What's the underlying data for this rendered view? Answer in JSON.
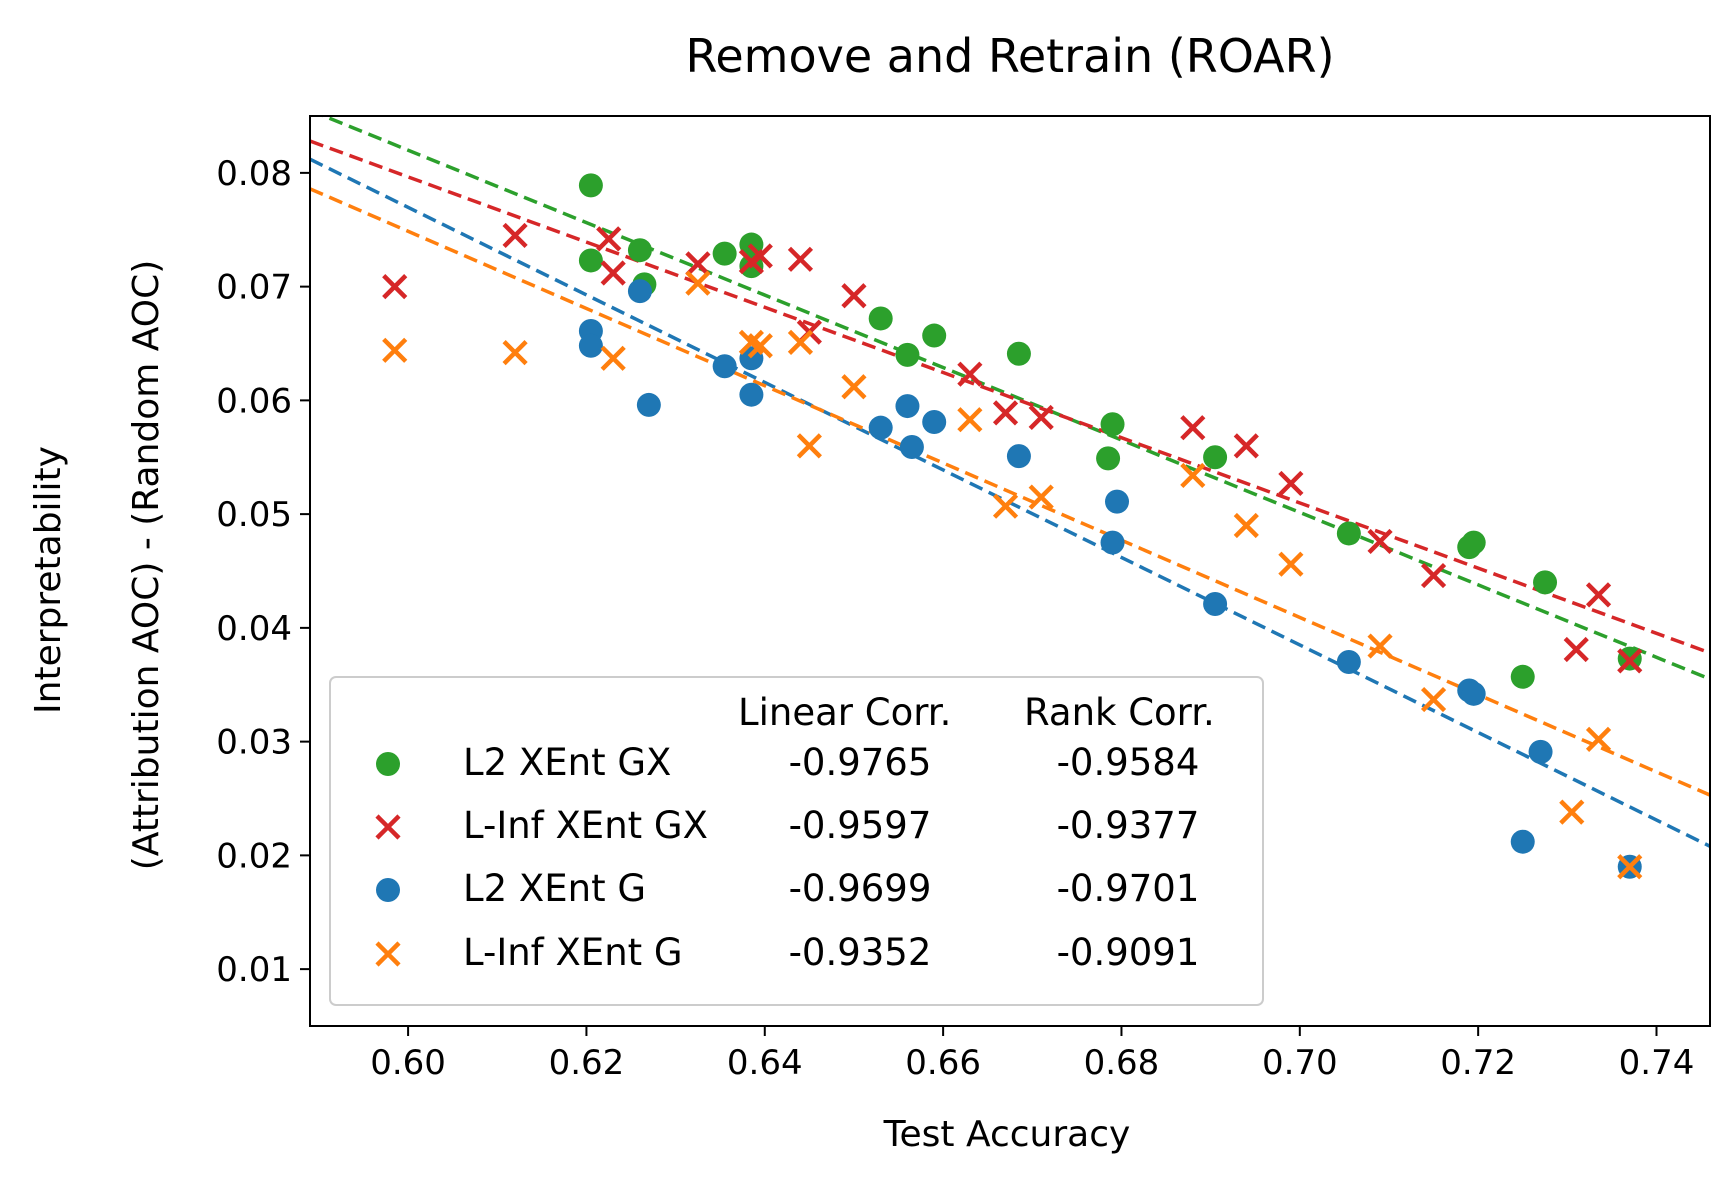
{
  "chart_data": {
    "type": "scatter",
    "title": "Remove and Retrain (ROAR)",
    "xlabel": "Test Accuracy",
    "ylabel_lines": [
      "Interpretability",
      "(Attribution AOC) - (Random AOC)"
    ],
    "xlim": [
      0.589,
      0.746
    ],
    "ylim": [
      0.005,
      0.085
    ],
    "xticks": [
      "0.60",
      "0.62",
      "0.64",
      "0.66",
      "0.68",
      "0.70",
      "0.72",
      "0.74"
    ],
    "yticks": [
      "0.01",
      "0.02",
      "0.03",
      "0.04",
      "0.05",
      "0.06",
      "0.07",
      "0.08"
    ],
    "grid": false,
    "legend_position": "lower-left",
    "legend_headers": [
      "Linear Corr.",
      "Rank Corr."
    ],
    "series": [
      {
        "name": "L2 XEnt GX",
        "marker": "circle",
        "color": "#2ca02c",
        "linear_corr": "-0.9765",
        "rank_corr": "-0.9584",
        "fit": {
          "x1": 0.589,
          "y1": 0.0855,
          "x2": 0.746,
          "y2": 0.0355
        },
        "points": [
          [
            0.6205,
            0.0789
          ],
          [
            0.6205,
            0.0723
          ],
          [
            0.626,
            0.0732
          ],
          [
            0.6265,
            0.0702
          ],
          [
            0.6355,
            0.0729
          ],
          [
            0.6385,
            0.0737
          ],
          [
            0.6385,
            0.0718
          ],
          [
            0.653,
            0.0672
          ],
          [
            0.656,
            0.064
          ],
          [
            0.659,
            0.0657
          ],
          [
            0.6685,
            0.0641
          ],
          [
            0.6785,
            0.0549
          ],
          [
            0.679,
            0.0579
          ],
          [
            0.6905,
            0.055
          ],
          [
            0.7055,
            0.0483
          ],
          [
            0.719,
            0.0471
          ],
          [
            0.7195,
            0.0475
          ],
          [
            0.7275,
            0.044
          ],
          [
            0.725,
            0.0357
          ],
          [
            0.737,
            0.0373
          ]
        ]
      },
      {
        "name": "L-Inf XEnt GX",
        "marker": "x",
        "color": "#d62728",
        "linear_corr": "-0.9597",
        "rank_corr": "-0.9377",
        "fit": {
          "x1": 0.589,
          "y1": 0.0828,
          "x2": 0.746,
          "y2": 0.0378
        },
        "points": [
          [
            0.5985,
            0.07
          ],
          [
            0.612,
            0.0745
          ],
          [
            0.6225,
            0.0742
          ],
          [
            0.623,
            0.0712
          ],
          [
            0.6325,
            0.072
          ],
          [
            0.6385,
            0.0722
          ],
          [
            0.6395,
            0.0727
          ],
          [
            0.644,
            0.0724
          ],
          [
            0.645,
            0.066
          ],
          [
            0.65,
            0.0692
          ],
          [
            0.663,
            0.0623
          ],
          [
            0.667,
            0.0589
          ],
          [
            0.671,
            0.0585
          ],
          [
            0.688,
            0.0576
          ],
          [
            0.694,
            0.056
          ],
          [
            0.699,
            0.0527
          ],
          [
            0.709,
            0.0476
          ],
          [
            0.715,
            0.0446
          ],
          [
            0.731,
            0.0381
          ],
          [
            0.7335,
            0.0429
          ],
          [
            0.737,
            0.0371
          ]
        ]
      },
      {
        "name": "L2 XEnt G",
        "marker": "circle",
        "color": "#1f77b4",
        "linear_corr": "-0.9699",
        "rank_corr": "-0.9701",
        "fit": {
          "x1": 0.589,
          "y1": 0.0812,
          "x2": 0.746,
          "y2": 0.0208
        },
        "points": [
          [
            0.6205,
            0.0661
          ],
          [
            0.6205,
            0.0648
          ],
          [
            0.626,
            0.0696
          ],
          [
            0.627,
            0.0596
          ],
          [
            0.6355,
            0.063
          ],
          [
            0.6385,
            0.0605
          ],
          [
            0.6385,
            0.0637
          ],
          [
            0.653,
            0.0576
          ],
          [
            0.656,
            0.0595
          ],
          [
            0.6565,
            0.0559
          ],
          [
            0.659,
            0.0581
          ],
          [
            0.6685,
            0.0551
          ],
          [
            0.679,
            0.0475
          ],
          [
            0.6795,
            0.0511
          ],
          [
            0.6905,
            0.0421
          ],
          [
            0.7055,
            0.037
          ],
          [
            0.719,
            0.0345
          ],
          [
            0.7195,
            0.0342
          ],
          [
            0.727,
            0.0291
          ],
          [
            0.725,
            0.0212
          ],
          [
            0.737,
            0.019
          ]
        ]
      },
      {
        "name": "L-Inf XEnt G",
        "marker": "x",
        "color": "#ff7f0e",
        "linear_corr": "-0.9352",
        "rank_corr": "-0.9091",
        "fit": {
          "x1": 0.589,
          "y1": 0.0786,
          "x2": 0.746,
          "y2": 0.0253
        },
        "points": [
          [
            0.5985,
            0.0644
          ],
          [
            0.612,
            0.0642
          ],
          [
            0.623,
            0.0637
          ],
          [
            0.6325,
            0.0703
          ],
          [
            0.6385,
            0.0651
          ],
          [
            0.6395,
            0.0648
          ],
          [
            0.644,
            0.0651
          ],
          [
            0.645,
            0.056
          ],
          [
            0.65,
            0.0612
          ],
          [
            0.663,
            0.0583
          ],
          [
            0.667,
            0.0507
          ],
          [
            0.671,
            0.0515
          ],
          [
            0.688,
            0.0534
          ],
          [
            0.694,
            0.049
          ],
          [
            0.699,
            0.0456
          ],
          [
            0.709,
            0.0384
          ],
          [
            0.715,
            0.0337
          ],
          [
            0.7305,
            0.0238
          ],
          [
            0.7335,
            0.0302
          ],
          [
            0.737,
            0.019
          ]
        ]
      }
    ]
  }
}
